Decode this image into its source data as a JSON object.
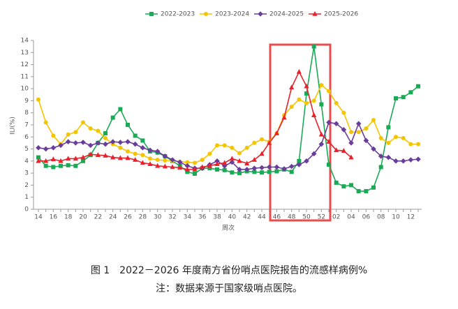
{
  "chart_data": {
    "type": "line",
    "title": "图 1　2022－2026 年度南方省份哨点医院报告的流感样病例%",
    "subtitle": "注：数据来源于国家级哨点医院。",
    "x_label": "周次",
    "y_label": "ILI(%)",
    "categories": [
      "14",
      null,
      "16",
      null,
      "18",
      null,
      "20",
      null,
      "22",
      null,
      "24",
      null,
      "26",
      null,
      "28",
      null,
      "30",
      null,
      "32",
      null,
      "34",
      null,
      "36",
      null,
      "38",
      null,
      "40",
      null,
      "42",
      null,
      "44",
      null,
      "46",
      null,
      "48",
      null,
      "50",
      null,
      "52",
      null,
      "02",
      null,
      "04",
      null,
      "06",
      null,
      "08",
      null,
      "10",
      null,
      "12",
      null
    ],
    "ylim": [
      0,
      14
    ],
    "yticks": [
      0,
      1,
      2,
      3,
      4,
      5,
      6,
      7,
      8,
      9,
      10,
      11,
      12,
      13,
      14
    ],
    "legend_position": "top",
    "series": [
      {
        "name": "2022-2023",
        "color": "#1aaa55",
        "marker": "square",
        "values": [
          4.3,
          3.6,
          3.5,
          3.6,
          3.65,
          3.6,
          4.0,
          4.5,
          5.5,
          6.3,
          7.6,
          8.3,
          7.0,
          6.1,
          5.7,
          4.8,
          4.7,
          4.4,
          4.0,
          3.6,
          3.1,
          2.95,
          3.4,
          3.4,
          3.3,
          3.25,
          3.05,
          3.0,
          3.15,
          3.1,
          3.05,
          3.1,
          3.15,
          3.3,
          3.1,
          4.0,
          9.6,
          13.5,
          8.7,
          3.7,
          2.2,
          1.9,
          2.0,
          1.5,
          1.5,
          1.8,
          3.5,
          6.8,
          9.2,
          9.3,
          9.7,
          10.2
        ]
      },
      {
        "name": "2023-2024",
        "color": "#f5c400",
        "marker": "circle",
        "values": [
          9.1,
          7.2,
          6.1,
          5.4,
          6.2,
          6.4,
          7.2,
          6.7,
          6.5,
          5.9,
          5.4,
          5.1,
          4.8,
          4.6,
          4.5,
          4.2,
          4.1,
          4.05,
          4.0,
          3.95,
          3.9,
          3.85,
          4.1,
          4.6,
          5.3,
          5.3,
          5.1,
          4.65,
          5.1,
          5.5,
          5.8,
          5.6,
          6.3,
          7.8,
          8.5,
          9.1,
          8.8,
          9.0,
          10.3,
          9.8,
          8.8,
          8.0,
          6.4,
          6.4,
          6.7,
          7.4,
          5.9,
          5.5,
          6.0,
          5.9,
          5.4,
          5.4
        ]
      },
      {
        "name": "2024-2025",
        "color": "#6a3d9a",
        "marker": "diamond",
        "values": [
          5.1,
          5.0,
          5.1,
          5.3,
          5.6,
          5.5,
          5.55,
          5.3,
          5.5,
          5.4,
          5.6,
          5.55,
          5.6,
          5.4,
          5.1,
          4.9,
          4.8,
          4.4,
          4.1,
          3.9,
          3.6,
          3.4,
          3.4,
          3.7,
          4.0,
          3.6,
          3.9,
          3.3,
          3.3,
          3.4,
          3.45,
          3.5,
          3.5,
          3.35,
          3.55,
          3.7,
          4.0,
          4.6,
          5.4,
          7.2,
          7.1,
          6.6,
          5.5,
          7.1,
          5.7,
          5.0,
          4.4,
          4.3,
          4.0,
          4.0,
          4.1,
          4.15
        ]
      },
      {
        "name": "2025-2026",
        "color": "#e8212b",
        "marker": "triangle",
        "values": [
          4.0,
          4.0,
          4.15,
          4.0,
          4.2,
          4.2,
          4.3,
          4.55,
          4.5,
          4.45,
          4.3,
          4.25,
          4.25,
          4.1,
          3.85,
          3.75,
          3.6,
          3.55,
          3.5,
          3.45,
          3.3,
          3.3,
          3.5,
          3.6,
          3.75,
          3.85,
          4.2,
          4.0,
          3.8,
          4.1,
          4.6,
          5.5,
          6.3,
          7.6,
          10.1,
          11.4,
          10.2,
          7.8,
          6.2,
          5.6,
          4.9,
          4.85,
          4.3,
          null,
          null,
          null,
          null,
          null,
          null,
          null,
          null,
          null
        ]
      }
    ]
  }
}
